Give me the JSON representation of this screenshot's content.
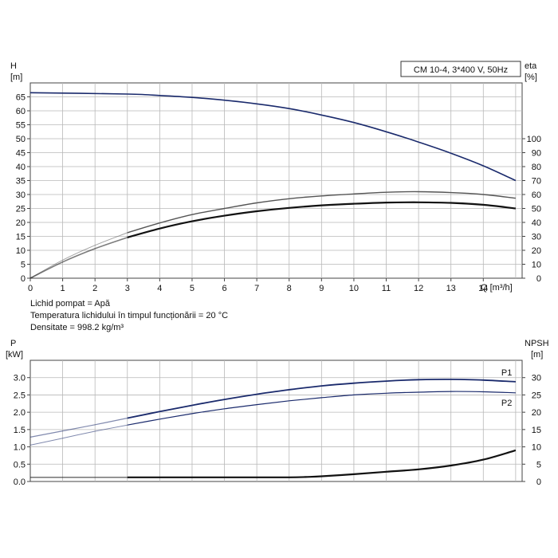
{
  "fluid_info": {
    "liquid": "Lichid pompat = Apă",
    "temperature": "Temperatura lichidului în timpul funcționării = 20 °C",
    "density": "Densitate = 998.2 kg/m³"
  },
  "chart_data": [
    {
      "type": "line",
      "title": "CM 10-4, 3*400 V, 50Hz",
      "ylabel_left_name": "H",
      "ylabel_left_unit": "[m]",
      "ylabel_right_name": "eta",
      "ylabel_right_unit": "[%]",
      "xlabel": "Q [m³/h]",
      "xlim": [
        0,
        15.2
      ],
      "ylim_left": [
        0,
        70
      ],
      "ylim_right": [
        0,
        140
      ],
      "x_ticks": [
        "0",
        "1",
        "2",
        "3",
        "4",
        "5",
        "6",
        "7",
        "8",
        "9",
        "10",
        "11",
        "12",
        "13",
        "14"
      ],
      "y_ticks_left": [
        "0",
        "5",
        "10",
        "15",
        "20",
        "25",
        "30",
        "35",
        "40",
        "45",
        "50",
        "55",
        "60",
        "65"
      ],
      "y_ticks_right": [
        "0",
        "10",
        "20",
        "30",
        "40",
        "50",
        "60",
        "70",
        "80",
        "90",
        "100"
      ],
      "grid": true,
      "series": [
        {
          "axis": "left",
          "color": "#1a2a6c",
          "width": 1.6,
          "x": [
            0,
            3,
            4,
            5,
            6,
            7,
            8,
            9,
            10,
            11,
            12,
            13,
            14,
            15
          ],
          "y": [
            66.5,
            66,
            65.5,
            64.8,
            63.8,
            62.5,
            60.8,
            58.5,
            55.8,
            52.5,
            48.8,
            44.8,
            40.3,
            35
          ]
        },
        {
          "axis": "left",
          "color": "#555555",
          "width": 1.4,
          "faded_until": 3,
          "x": [
            0,
            1,
            2,
            3,
            4,
            5,
            6,
            7,
            8,
            9,
            10,
            11,
            12,
            13,
            14,
            15
          ],
          "y": [
            0,
            6.5,
            11.8,
            16.3,
            19.8,
            22.8,
            25,
            27,
            28.5,
            29.5,
            30.2,
            30.8,
            31,
            30.7,
            30,
            28.7
          ]
        },
        {
          "axis": "left",
          "color": "#111111",
          "width": 2.2,
          "faded_until": 3,
          "x": [
            0,
            1,
            2,
            3,
            4,
            5,
            6,
            7,
            8,
            9,
            10,
            11,
            12,
            13,
            14,
            15
          ],
          "y": [
            0,
            5.8,
            10.6,
            14.6,
            17.8,
            20.4,
            22.4,
            24,
            25.2,
            26.1,
            26.7,
            27.1,
            27.2,
            27,
            26.3,
            25
          ]
        }
      ]
    },
    {
      "type": "line",
      "ylabel_left_name": "P",
      "ylabel_left_unit": "[kW]",
      "ylabel_right_name": "NPSH",
      "ylabel_right_unit": "[m]",
      "xlim": [
        0,
        15.2
      ],
      "ylim_left": [
        0,
        3.5
      ],
      "ylim_right": [
        0,
        35
      ],
      "y_ticks_left": [
        "0.0",
        "0.5",
        "1.0",
        "1.5",
        "2.0",
        "2.5",
        "3.0"
      ],
      "y_ticks_right": [
        "0",
        "5",
        "10",
        "15",
        "20",
        "25",
        "30"
      ],
      "grid": true,
      "series": [
        {
          "name": "P1",
          "axis": "left",
          "color": "#1a2a6c",
          "width": 1.8,
          "faded_until": 3,
          "x": [
            0,
            1,
            2,
            3,
            4,
            5,
            6,
            7,
            8,
            9,
            10,
            11,
            12,
            13,
            14,
            15
          ],
          "y": [
            1.28,
            1.46,
            1.64,
            1.83,
            2.02,
            2.2,
            2.37,
            2.52,
            2.65,
            2.76,
            2.84,
            2.9,
            2.94,
            2.95,
            2.93,
            2.88
          ]
        },
        {
          "name": "P2",
          "axis": "left",
          "color": "#1a2a6c",
          "width": 1.2,
          "faded_until": 3,
          "x": [
            0,
            1,
            2,
            3,
            4,
            5,
            6,
            7,
            8,
            9,
            10,
            11,
            12,
            13,
            14,
            15
          ],
          "y": [
            1.05,
            1.25,
            1.45,
            1.63,
            1.8,
            1.96,
            2.1,
            2.22,
            2.33,
            2.42,
            2.5,
            2.55,
            2.58,
            2.6,
            2.59,
            2.56
          ]
        },
        {
          "axis": "right",
          "color": "#111111",
          "width": 2.2,
          "faded_until": 3,
          "x": [
            0,
            3,
            4,
            5,
            6,
            7,
            8,
            8.5,
            9,
            10,
            11,
            12,
            13,
            14,
            15
          ],
          "y": [
            1.2,
            1.2,
            1.2,
            1.2,
            1.2,
            1.2,
            1.2,
            1.3,
            1.5,
            2.1,
            2.8,
            3.5,
            4.6,
            6.3,
            9
          ]
        }
      ]
    }
  ]
}
